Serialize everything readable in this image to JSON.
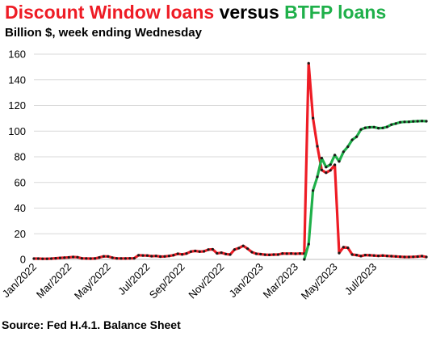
{
  "title": {
    "part1": "Discount Window loans",
    "part2": " versus ",
    "part3": "BTFP loans",
    "color1": "#ee1c25",
    "color2": "#000000",
    "color3": "#1fb04a"
  },
  "subtitle": "Billion $, week ending Wednesday",
  "source": "Source: Fed H.4.1. Balance Sheet",
  "chart_data": {
    "type": "line",
    "title": "Discount Window loans versus BTFP loans",
    "ylabel": "Billion $, week ending Wednesday",
    "ylim": [
      0,
      160
    ],
    "yticks": [
      0,
      20,
      40,
      60,
      80,
      100,
      120,
      140,
      160
    ],
    "xticks": [
      "Jan/2022",
      "Mar/2022",
      "May/2022",
      "Jul/2022",
      "Sep/2022",
      "Nov/2022",
      "Jan/2023",
      "Mar/2023",
      "May/2023",
      "Jul/2023"
    ],
    "xtick_index": [
      0,
      8,
      17,
      26,
      34,
      43,
      52,
      60,
      69,
      78
    ],
    "grid": "horizontal",
    "series": [
      {
        "name": "Discount Window loans",
        "color": "#ee1c25",
        "start_index": 0,
        "values": [
          0.6,
          0.6,
          0.5,
          0.5,
          0.6,
          0.9,
          1.2,
          1.4,
          1.6,
          1.9,
          1.7,
          0.8,
          0.7,
          0.6,
          0.7,
          1.5,
          2.4,
          2.3,
          1.3,
          0.8,
          0.7,
          0.7,
          0.8,
          0.9,
          3.3,
          3.1,
          3.0,
          2.5,
          2.7,
          2.2,
          2.3,
          2.7,
          3.3,
          4.4,
          3.9,
          4.6,
          6.1,
          6.6,
          6.1,
          6.3,
          7.6,
          7.9,
          4.7,
          5.2,
          4.2,
          3.8,
          7.7,
          8.8,
          10.6,
          8.4,
          5.7,
          4.4,
          4.1,
          3.7,
          3.5,
          3.8,
          3.8,
          4.6,
          4.5,
          4.6,
          4.4,
          4.6,
          4.5,
          152.9,
          110.2,
          88.2,
          69.7,
          67.6,
          69.5,
          73.7,
          5.0,
          9.6,
          9.1,
          3.8,
          3.4,
          2.6,
          3.4,
          3.2,
          3.0,
          2.8,
          3.0,
          2.7,
          2.5,
          2.3,
          2.1,
          1.9,
          1.9,
          2.0,
          2.2,
          2.6,
          1.9
        ]
      },
      {
        "name": "BTFP loans",
        "color": "#1fb04a",
        "start_index": 62,
        "values": [
          0.0,
          11.9,
          53.7,
          64.4,
          79.0,
          72.0,
          73.9,
          81.3,
          76.4,
          83.9,
          87.9,
          93.2,
          95.6,
          101.3,
          102.6,
          103.0,
          103.1,
          102.3,
          102.5,
          103.3,
          105.1,
          105.9,
          106.9,
          107.2,
          107.3,
          107.6,
          107.7,
          107.9,
          107.7
        ]
      }
    ]
  }
}
